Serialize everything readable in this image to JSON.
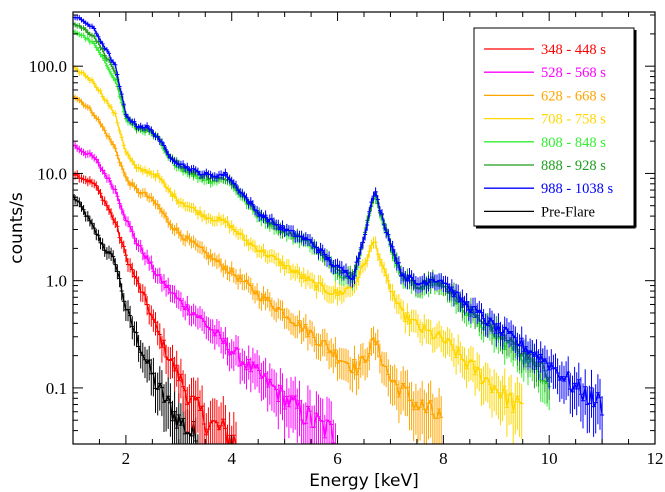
{
  "chart_data": {
    "type": "line",
    "title": "",
    "xlabel": "Energy [keV]",
    "ylabel": "counts/s",
    "xlim": [
      1,
      12
    ],
    "ylim": [
      0.03,
      320
    ],
    "yscale": "log",
    "grid": false,
    "legend_position": "top-right",
    "x_ticks": [
      2,
      4,
      6,
      8,
      10,
      12
    ],
    "x_tick_labels": [
      "2",
      "4",
      "6",
      "8",
      "10",
      "12"
    ],
    "y_ticks": [
      100,
      10,
      1,
      0.1
    ],
    "y_tick_labels": [
      "100.0",
      "10.0",
      "1.0",
      "0.1"
    ],
    "series": [
      {
        "name": "348 - 448 s",
        "color": "#ff0000",
        "x": [
          1.0,
          1.2,
          1.4,
          1.6,
          1.8,
          2.0,
          2.2,
          2.4,
          2.6,
          2.8,
          3.0,
          3.2,
          3.5,
          3.8,
          4.1
        ],
        "y": [
          10.2,
          9.0,
          8.0,
          5.5,
          3.5,
          1.7,
          1.0,
          0.6,
          0.33,
          0.2,
          0.13,
          0.08,
          0.05,
          0.04,
          0.03
        ]
      },
      {
        "name": "528 - 568 s",
        "color": "#ff00ff",
        "x": [
          1.0,
          1.2,
          1.4,
          1.6,
          1.8,
          2.0,
          2.2,
          2.4,
          2.6,
          2.8,
          3.0,
          3.4,
          3.8,
          4.2,
          4.6,
          5.0,
          5.5,
          6.0
        ],
        "y": [
          18.5,
          16.0,
          14.0,
          10.0,
          7.0,
          3.8,
          2.3,
          1.6,
          1.1,
          0.85,
          0.65,
          0.45,
          0.28,
          0.18,
          0.12,
          0.08,
          0.05,
          0.035
        ]
      },
      {
        "name": "628 - 668 s",
        "color": "#ffa500",
        "x": [
          1.0,
          1.2,
          1.4,
          1.6,
          1.8,
          2.0,
          2.2,
          2.4,
          2.6,
          2.8,
          3.0,
          3.5,
          4.0,
          4.5,
          5.0,
          5.5,
          6.0,
          6.4,
          6.7,
          7.0,
          7.5,
          8.0
        ],
        "y": [
          54.0,
          45.0,
          36.0,
          25.0,
          17.0,
          9.0,
          7.0,
          6.2,
          5.0,
          3.6,
          2.8,
          1.8,
          1.2,
          0.75,
          0.5,
          0.32,
          0.2,
          0.15,
          0.28,
          0.12,
          0.07,
          0.05
        ]
      },
      {
        "name": "708 - 758 s",
        "color": "#ffd700",
        "x": [
          1.0,
          1.2,
          1.4,
          1.6,
          1.8,
          2.0,
          2.2,
          2.4,
          2.6,
          2.8,
          3.0,
          3.5,
          3.9,
          4.3,
          4.8,
          5.2,
          5.6,
          6.0,
          6.3,
          6.5,
          6.7,
          6.9,
          7.2,
          7.6,
          8.0,
          8.5,
          9.0,
          9.5
        ],
        "y": [
          95.0,
          85.0,
          70.0,
          50.0,
          35.0,
          16.0,
          11.0,
          10.5,
          9.5,
          7.0,
          5.6,
          4.0,
          3.5,
          2.3,
          1.6,
          1.2,
          0.9,
          0.75,
          0.9,
          1.4,
          2.4,
          1.1,
          0.5,
          0.35,
          0.28,
          0.16,
          0.1,
          0.06
        ]
      },
      {
        "name": "808 - 848 s",
        "color": "#33ee33",
        "x": [
          1.0,
          1.2,
          1.4,
          1.6,
          1.8,
          2.0,
          2.2,
          2.4,
          2.6,
          2.8,
          3.0,
          3.3,
          3.6,
          3.9,
          4.2,
          4.5,
          5.0,
          5.5,
          6.0,
          6.3,
          6.5,
          6.7,
          6.9,
          7.2,
          7.5,
          7.8,
          8.0,
          8.3,
          8.6,
          9.0,
          9.5,
          10.0
        ],
        "y": [
          215.0,
          190.0,
          160.0,
          110.0,
          75.0,
          32.0,
          26.0,
          25.0,
          21.0,
          14.0,
          11.5,
          9.5,
          8.5,
          9.0,
          6.0,
          4.0,
          2.8,
          2.2,
          1.2,
          1.05,
          2.5,
          6.5,
          3.0,
          1.1,
          0.85,
          0.95,
          0.9,
          0.6,
          0.45,
          0.3,
          0.2,
          0.12
        ]
      },
      {
        "name": "888 - 928 s",
        "color": "#1e9e1e",
        "x": [
          1.0,
          1.2,
          1.4,
          1.6,
          1.8,
          2.0,
          2.2,
          2.4,
          2.6,
          2.8,
          3.0,
          3.3,
          3.6,
          3.9,
          4.2,
          4.5,
          5.0,
          5.5,
          6.0,
          6.3,
          6.5,
          6.7,
          6.9,
          7.2,
          7.5,
          7.8,
          8.0,
          8.3,
          8.6,
          9.0,
          9.5,
          10.0
        ],
        "y": [
          250.0,
          225.0,
          190.0,
          130.0,
          88.0,
          34.0,
          27.0,
          26.0,
          22.0,
          15.0,
          12.0,
          10.0,
          9.0,
          9.2,
          6.3,
          4.2,
          2.9,
          2.3,
          1.25,
          1.1,
          2.6,
          6.8,
          3.1,
          1.15,
          0.9,
          1.0,
          0.95,
          0.65,
          0.5,
          0.33,
          0.22,
          0.13
        ]
      },
      {
        "name": "988 - 1038 s",
        "color": "#0000ff",
        "x": [
          1.0,
          1.2,
          1.4,
          1.6,
          1.8,
          2.0,
          2.2,
          2.4,
          2.6,
          2.8,
          3.0,
          3.3,
          3.6,
          3.9,
          4.2,
          4.5,
          5.0,
          5.5,
          6.0,
          6.3,
          6.5,
          6.7,
          6.9,
          7.2,
          7.5,
          7.8,
          8.0,
          8.3,
          8.6,
          9.0,
          9.5,
          10.0,
          10.5,
          11.0
        ],
        "y": [
          290.0,
          265.0,
          220.0,
          150.0,
          100.0,
          35.0,
          28.0,
          27.0,
          22.0,
          15.0,
          12.5,
          10.5,
          9.5,
          9.8,
          6.5,
          4.3,
          3.0,
          2.3,
          1.3,
          1.1,
          2.6,
          7.0,
          3.2,
          1.2,
          0.92,
          1.05,
          1.0,
          0.68,
          0.52,
          0.36,
          0.25,
          0.17,
          0.1,
          0.07
        ]
      },
      {
        "name": "Pre-Flare",
        "color": "#000000",
        "x": [
          1.0,
          1.2,
          1.4,
          1.6,
          1.8,
          2.0,
          2.2,
          2.4,
          2.6,
          2.8,
          3.0,
          3.2,
          3.4
        ],
        "y": [
          6.2,
          4.5,
          3.0,
          2.0,
          1.5,
          0.55,
          0.3,
          0.17,
          0.1,
          0.07,
          0.05,
          0.04,
          0.03
        ]
      }
    ]
  }
}
